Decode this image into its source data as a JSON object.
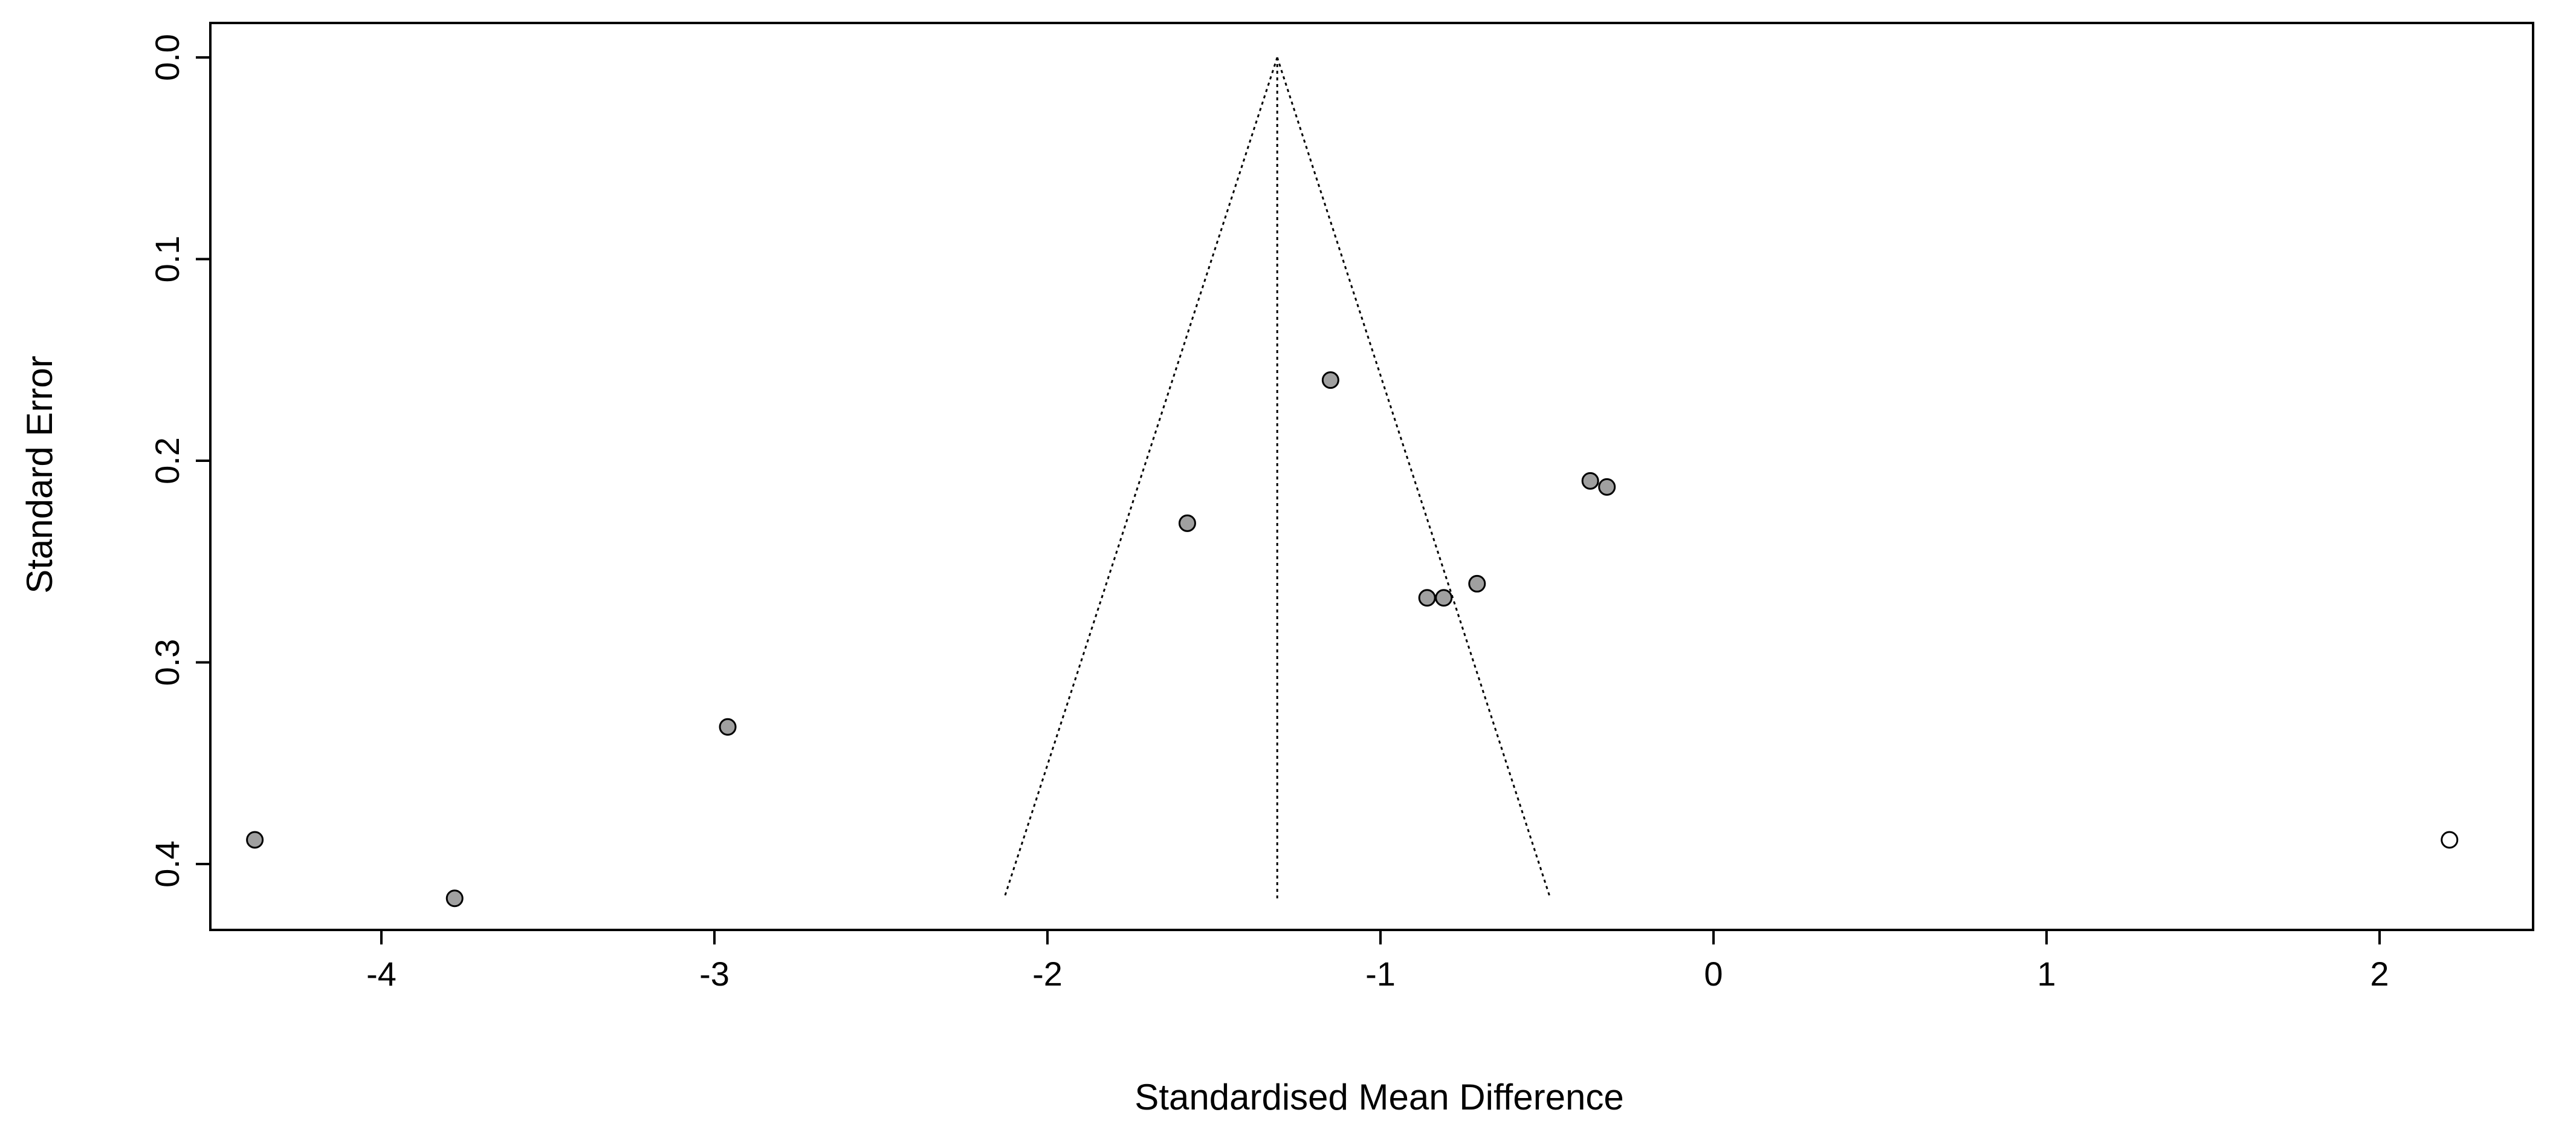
{
  "chart_data": {
    "type": "scatter",
    "subtype": "funnel-plot",
    "title": "",
    "xlabel": "Standardised Mean Difference",
    "ylabel": "Standard Error",
    "xlim": [
      -4.5,
      2.5
    ],
    "ylim": [
      0,
      0.42
    ],
    "y_reversed": true,
    "x_ticks": [
      -4,
      -3,
      -2,
      -1,
      0,
      1,
      2
    ],
    "x_tick_labels": [
      "-4",
      "-3",
      "-2",
      "-1",
      "0",
      "1",
      "2"
    ],
    "y_ticks": [
      0.0,
      0.1,
      0.2,
      0.3,
      0.4
    ],
    "y_tick_labels": [
      "0.0",
      "0.1",
      "0.2",
      "0.3",
      "0.4"
    ],
    "grid": false,
    "pooled_estimate": -1.31,
    "funnel": {
      "apex": [
        -1.31,
        0.0
      ],
      "base_left": [
        -2.13,
        0.417
      ],
      "base_right": [
        -0.49,
        0.417
      ]
    },
    "points": [
      {
        "x": -4.38,
        "y": 0.388,
        "filled": true
      },
      {
        "x": -3.78,
        "y": 0.417,
        "filled": true
      },
      {
        "x": -2.96,
        "y": 0.332,
        "filled": true
      },
      {
        "x": -1.58,
        "y": 0.231,
        "filled": true
      },
      {
        "x": -1.15,
        "y": 0.16,
        "filled": true
      },
      {
        "x": -0.86,
        "y": 0.268,
        "filled": true
      },
      {
        "x": -0.81,
        "y": 0.268,
        "filled": true
      },
      {
        "x": -0.71,
        "y": 0.261,
        "filled": true
      },
      {
        "x": -0.37,
        "y": 0.21,
        "filled": true
      },
      {
        "x": -0.32,
        "y": 0.213,
        "filled": true
      },
      {
        "x": 2.21,
        "y": 0.388,
        "filled": false
      }
    ],
    "colors": {
      "filled_point": "#a0a0a0",
      "open_point": "#ffffff",
      "stroke": "#000000"
    }
  }
}
